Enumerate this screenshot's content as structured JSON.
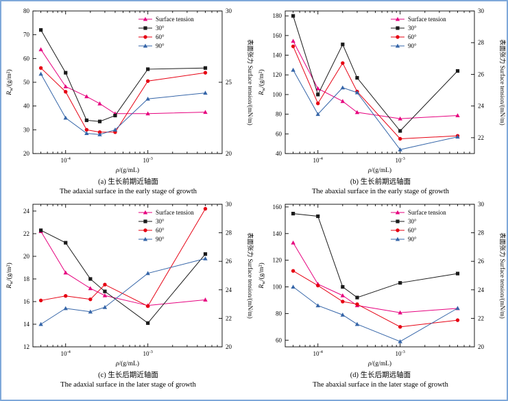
{
  "figure": {
    "frame_color": "#7fa8d9",
    "axis_labels": {
      "x": {
        "symbol": "ρ",
        "unit": "/(g/mL)"
      },
      "y_left": {
        "symbol": "R",
        "subscript": "w",
        "unit": "/(g/m²)"
      },
      "y_right": "表面张力 Surface tension/(mN/m)"
    },
    "legend": [
      "Surface tension",
      "30°",
      "60°",
      "90°"
    ],
    "colors": {
      "surface_tension": "#e6007e",
      "deg30": "#1a1a1a",
      "deg60": "#e60012",
      "deg90": "#3565a8"
    }
  },
  "chart_data": [
    {
      "id": "a",
      "type": "line",
      "caption_zh": "(a) 生长前期近轴面",
      "caption_en": "The adaxial surface in the early stage of growth",
      "xlabel": "ρ/(g/mL)",
      "ylabel_left": "Rw/(g/m²)",
      "ylabel_right": "表面张力 Surface tension/(mN/m)",
      "xlim": [
        4e-05,
        0.008
      ],
      "x_ticks": [
        {
          "value": 0.0001,
          "label": "10⁻⁴",
          "exp": "-4"
        },
        {
          "value": 0.001,
          "label": "10⁻³",
          "exp": "-3"
        }
      ],
      "left_axis": {
        "lim": [
          20,
          80
        ],
        "ticks": [
          20,
          30,
          40,
          50,
          60,
          70,
          80
        ]
      },
      "right_axis": {
        "lim": [
          20,
          30
        ],
        "ticks": [
          20,
          25,
          30
        ]
      },
      "x": [
        5e-05,
        0.0001,
        0.00018,
        0.00026,
        0.0004,
        0.001,
        0.005
      ],
      "series": [
        {
          "name": "Surface tension",
          "axis": "right",
          "color": "#e6007e",
          "marker": "triangle",
          "values": [
            27.3,
            24.7,
            24.0,
            23.5,
            22.8,
            22.8,
            22.9
          ]
        },
        {
          "name": "30°",
          "axis": "left",
          "color": "#1a1a1a",
          "marker": "square",
          "values": [
            72,
            54,
            34,
            33.5,
            36,
            55.5,
            56
          ]
        },
        {
          "name": "60°",
          "axis": "left",
          "color": "#e60012",
          "marker": "circle",
          "values": [
            56,
            46,
            30,
            29,
            29,
            50.5,
            54
          ]
        },
        {
          "name": "90°",
          "axis": "left",
          "color": "#3565a8",
          "marker": "triangle",
          "values": [
            53.5,
            35,
            28.5,
            28,
            30,
            43,
            45.5
          ]
        }
      ]
    },
    {
      "id": "b",
      "type": "line",
      "caption_zh": "(b) 生长前期远轴面",
      "caption_en": "The abaxial surface in the early stage of growth",
      "xlabel": "ρ/(g/mL)",
      "ylabel_left": "Rw/(g/m²)",
      "ylabel_right": "表面张力 Surface tension/(mN/m)",
      "xlim": [
        4e-05,
        0.008
      ],
      "x_ticks": [
        {
          "value": 0.0001,
          "label": "10⁻⁴",
          "exp": "-4"
        },
        {
          "value": 0.001,
          "label": "10⁻³",
          "exp": "-3"
        }
      ],
      "left_axis": {
        "lim": [
          40,
          185
        ],
        "ticks": [
          40,
          60,
          80,
          100,
          120,
          140,
          160,
          180
        ]
      },
      "right_axis": {
        "lim": [
          21,
          30
        ],
        "ticks": [
          22,
          24,
          26,
          28,
          30
        ]
      },
      "x": [
        5e-05,
        0.0001,
        0.0002,
        0.0003,
        0.001,
        0.005
      ],
      "series": [
        {
          "name": "Surface tension",
          "axis": "right",
          "color": "#e6007e",
          "marker": "triangle",
          "values": [
            28.1,
            25.1,
            24.3,
            23.6,
            23.2,
            23.4
          ]
        },
        {
          "name": "30°",
          "axis": "left",
          "color": "#1a1a1a",
          "marker": "square",
          "values": [
            180,
            100,
            151,
            117,
            63,
            124
          ]
        },
        {
          "name": "60°",
          "axis": "left",
          "color": "#e60012",
          "marker": "circle",
          "values": [
            149,
            91,
            132,
            103,
            55,
            58
          ]
        },
        {
          "name": "90°",
          "axis": "left",
          "color": "#3565a8",
          "marker": "triangle",
          "values": [
            125,
            80,
            107,
            102,
            44,
            57
          ]
        }
      ]
    },
    {
      "id": "c",
      "type": "line",
      "caption_zh": "(c) 生长后期近轴面",
      "caption_en": "The adaxial surface in the later stage of growth",
      "xlabel": "ρ/(g/mL)",
      "ylabel_left": "Rw/(g/m²)",
      "ylabel_right": "表面张力 Surface tension/(mN/m)",
      "xlim": [
        4e-05,
        0.008
      ],
      "x_ticks": [
        {
          "value": 0.0001,
          "label": "10⁻⁴",
          "exp": "-4"
        },
        {
          "value": 0.001,
          "label": "10⁻³",
          "exp": "-3"
        }
      ],
      "left_axis": {
        "lim": [
          12,
          24.6
        ],
        "ticks": [
          12,
          14,
          16,
          18,
          20,
          22,
          24
        ]
      },
      "right_axis": {
        "lim": [
          20,
          30
        ],
        "ticks": [
          20,
          22,
          24,
          26,
          28,
          30
        ]
      },
      "x": [
        5e-05,
        0.0001,
        0.0002,
        0.0003,
        0.001,
        0.005
      ],
      "series": [
        {
          "name": "Surface tension",
          "axis": "right",
          "color": "#e6007e",
          "marker": "triangle",
          "values": [
            28.1,
            25.2,
            24.1,
            23.6,
            22.9,
            23.3
          ]
        },
        {
          "name": "30°",
          "axis": "left",
          "color": "#1a1a1a",
          "marker": "square",
          "values": [
            22.3,
            21.2,
            18.0,
            16.9,
            14.1,
            20.2
          ]
        },
        {
          "name": "60°",
          "axis": "left",
          "color": "#e60012",
          "marker": "circle",
          "values": [
            16.1,
            16.5,
            16.2,
            17.5,
            15.6,
            24.2
          ]
        },
        {
          "name": "90°",
          "axis": "left",
          "color": "#3565a8",
          "marker": "triangle",
          "values": [
            14.0,
            15.4,
            15.1,
            15.5,
            18.5,
            19.8
          ]
        }
      ]
    },
    {
      "id": "d",
      "type": "line",
      "caption_zh": "(d) 生长后期远轴面",
      "caption_en": "The abaxial surface in the later stage of growth",
      "xlabel": "ρ/(g/mL)",
      "ylabel_left": "Rw/(g/m²)",
      "ylabel_right": "表面张力 Surface tension/(mN/m)",
      "xlim": [
        4e-05,
        0.008
      ],
      "x_ticks": [
        {
          "value": 0.0001,
          "label": "10⁻⁴",
          "exp": "-4"
        },
        {
          "value": 0.001,
          "label": "10⁻³",
          "exp": "-3"
        }
      ],
      "left_axis": {
        "lim": [
          55,
          162
        ],
        "ticks": [
          60,
          80,
          100,
          120,
          140,
          160
        ]
      },
      "right_axis": {
        "lim": [
          20,
          30
        ],
        "ticks": [
          20,
          22,
          24,
          26,
          28,
          30
        ]
      },
      "x": [
        5e-05,
        0.0001,
        0.0002,
        0.0003,
        0.001,
        0.005
      ],
      "series": [
        {
          "name": "Surface tension",
          "axis": "right",
          "color": "#e6007e",
          "marker": "triangle",
          "values": [
            27.3,
            24.4,
            23.6,
            22.9,
            22.4,
            22.7
          ]
        },
        {
          "name": "30°",
          "axis": "left",
          "color": "#1a1a1a",
          "marker": "square",
          "values": [
            155,
            153,
            100,
            92,
            103,
            110
          ]
        },
        {
          "name": "60°",
          "axis": "left",
          "color": "#e60012",
          "marker": "circle",
          "values": [
            112,
            101,
            89,
            87,
            70,
            75
          ]
        },
        {
          "name": "90°",
          "axis": "left",
          "color": "#3565a8",
          "marker": "triangle",
          "values": [
            100,
            86,
            79,
            72,
            59,
            84
          ]
        }
      ]
    }
  ]
}
